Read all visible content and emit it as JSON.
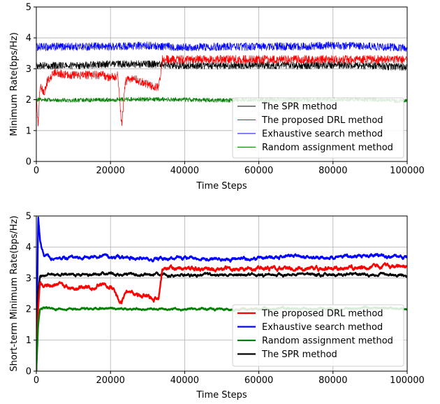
{
  "chart_data": [
    {
      "type": "line",
      "title": "",
      "xlabel": "Time Steps",
      "ylabel": "Minimum Rate(bps/Hz)",
      "xlim": [
        0,
        100000
      ],
      "ylim": [
        0,
        5
      ],
      "xticks": [
        "0",
        "20000",
        "40000",
        "60000",
        "80000",
        "100000"
      ],
      "yticks": [
        "0",
        "1",
        "2",
        "3",
        "4",
        "5"
      ],
      "grid": true,
      "legend_position": "lower-right",
      "legend_order": [
        "The SPR method",
        "The proposed DRL method",
        "Exhaustive search method",
        "Random assignment method"
      ],
      "series": [
        {
          "name": "Exhaustive search method",
          "color": "#0000ff",
          "noise": 0.13,
          "x": [
            0,
            1000,
            10000,
            20000,
            30000,
            40000,
            50000,
            60000,
            70000,
            80000,
            90000,
            100000
          ],
          "y": [
            3.7,
            3.7,
            3.72,
            3.72,
            3.75,
            3.7,
            3.72,
            3.72,
            3.72,
            3.75,
            3.72,
            3.68
          ]
        },
        {
          "name": "The SPR method",
          "color": "#000000",
          "noise": 0.12,
          "x": [
            0,
            1000,
            10000,
            20000,
            30000,
            40000,
            50000,
            60000,
            70000,
            80000,
            90000,
            100000
          ],
          "y": [
            3.1,
            3.1,
            3.1,
            3.15,
            3.15,
            3.1,
            3.1,
            3.12,
            3.1,
            3.12,
            3.1,
            3.05
          ]
        },
        {
          "name": "The proposed DRL method",
          "color": "#ff0000",
          "noise": 0.14,
          "x": [
            0,
            500,
            1000,
            2000,
            3000,
            5000,
            8000,
            10000,
            15000,
            18000,
            20000,
            22000,
            23000,
            24000,
            26000,
            28000,
            30000,
            32000,
            33000,
            34000,
            40000,
            50000,
            60000,
            70000,
            80000,
            90000,
            100000
          ],
          "y": [
            2.0,
            1.2,
            2.5,
            2.2,
            2.6,
            2.9,
            2.8,
            2.8,
            2.8,
            2.8,
            2.7,
            2.8,
            1.2,
            2.6,
            2.7,
            2.6,
            2.5,
            2.4,
            2.4,
            3.3,
            3.3,
            3.3,
            3.3,
            3.3,
            3.3,
            3.3,
            3.3
          ]
        },
        {
          "name": "Random assignment method",
          "color": "#008000",
          "noise": 0.07,
          "x": [
            0,
            1000,
            10000,
            20000,
            30000,
            40000,
            50000,
            60000,
            70000,
            80000,
            90000,
            100000
          ],
          "y": [
            2.0,
            2.0,
            1.98,
            2.0,
            2.02,
            2.0,
            1.98,
            2.0,
            2.0,
            2.0,
            2.0,
            1.95
          ]
        }
      ]
    },
    {
      "type": "line",
      "title": "",
      "xlabel": "Time Steps",
      "ylabel": "Short-term Minimum Rate(bps/Hz)",
      "xlim": [
        0,
        100000
      ],
      "ylim": [
        0,
        5
      ],
      "xticks": [
        "0",
        "20000",
        "40000",
        "60000",
        "80000",
        "100000"
      ],
      "yticks": [
        "0",
        "1",
        "2",
        "3",
        "4",
        "5"
      ],
      "grid": true,
      "legend_position": "lower-right",
      "legend_order": [
        "The proposed DRL method",
        "Exhaustive search method",
        "Random assignment method",
        "The SPR method"
      ],
      "series": [
        {
          "name": "Exhaustive search method",
          "color": "#0000ff",
          "noise": 0.05,
          "x": [
            0,
            500,
            1000,
            2000,
            5000,
            10000,
            20000,
            30000,
            40000,
            50000,
            60000,
            70000,
            80000,
            90000,
            100000
          ],
          "y": [
            0.0,
            5.0,
            4.2,
            3.7,
            3.6,
            3.65,
            3.7,
            3.6,
            3.65,
            3.6,
            3.65,
            3.7,
            3.65,
            3.75,
            3.65
          ]
        },
        {
          "name": "The SPR method",
          "color": "#000000",
          "noise": 0.04,
          "x": [
            0,
            500,
            1000,
            2000,
            5000,
            10000,
            20000,
            30000,
            40000,
            50000,
            60000,
            70000,
            80000,
            90000,
            100000
          ],
          "y": [
            0.0,
            2.5,
            3.0,
            3.1,
            3.1,
            3.1,
            3.15,
            3.1,
            3.1,
            3.1,
            3.1,
            3.1,
            3.1,
            3.1,
            3.1
          ]
        },
        {
          "name": "The proposed DRL method",
          "color": "#ff0000",
          "noise": 0.06,
          "x": [
            0,
            500,
            1000,
            2000,
            5000,
            10000,
            15000,
            20000,
            23000,
            24000,
            26000,
            30000,
            33000,
            34000,
            40000,
            50000,
            60000,
            70000,
            80000,
            90000,
            100000
          ],
          "y": [
            0.0,
            2.0,
            2.9,
            2.7,
            2.8,
            2.7,
            2.7,
            2.75,
            2.2,
            2.6,
            2.5,
            2.4,
            2.3,
            3.3,
            3.3,
            3.3,
            3.3,
            3.3,
            3.3,
            3.35,
            3.4
          ]
        },
        {
          "name": "Random assignment method",
          "color": "#008000",
          "noise": 0.03,
          "x": [
            0,
            500,
            1000,
            2000,
            5000,
            10000,
            20000,
            30000,
            40000,
            50000,
            60000,
            70000,
            80000,
            90000,
            100000
          ],
          "y": [
            0.0,
            1.5,
            2.0,
            2.05,
            2.0,
            2.0,
            2.02,
            2.0,
            2.0,
            2.0,
            2.0,
            2.02,
            2.0,
            2.05,
            2.0
          ]
        }
      ]
    }
  ]
}
